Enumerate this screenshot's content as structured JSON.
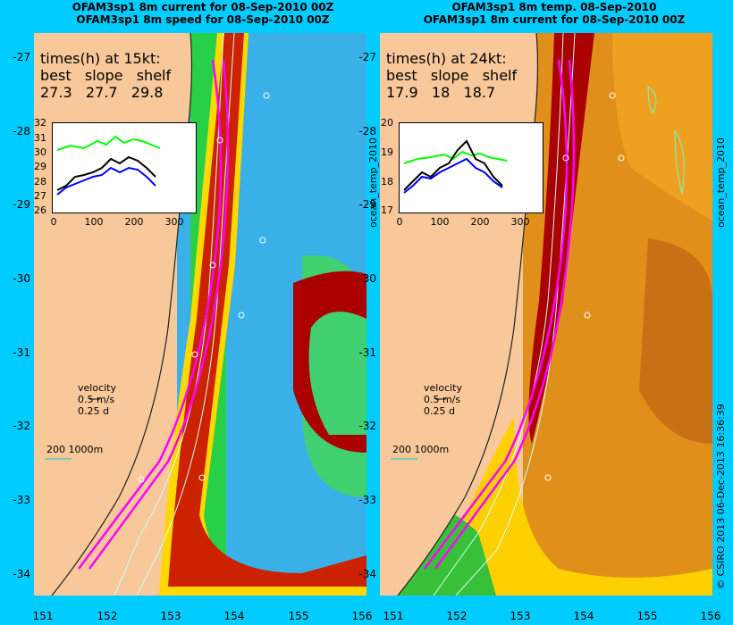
{
  "left": {
    "title1": "OFAM3sp1 8m current for 08-Sep-2010 00Z",
    "title2": "OFAM3sp1 8m speed for 08-Sep-2010 00Z",
    "times_heading": "times(h) at 15kt:",
    "col_labels": [
      "best",
      "slope",
      "shelf"
    ],
    "col_values": [
      "27.3",
      "27.7",
      "29.8"
    ],
    "inset_yticks": [
      "32",
      "31",
      "30",
      "29",
      "28",
      "27",
      "26"
    ],
    "inset_xticks": [
      "0",
      "100",
      "200",
      "300"
    ],
    "velocity": [
      "velocity",
      "0.5 m/s",
      "0.25 d"
    ],
    "scale": "200  1000m"
  },
  "right": {
    "title1": "OFAM3sp1 8m temp. 08-Sep-2010",
    "title2": "OFAM3sp1 8m current for 08-Sep-2010 00Z",
    "times_heading": "times(h) at 24kt:",
    "col_labels": [
      "best",
      "slope",
      "shelf"
    ],
    "col_values": [
      "17.9",
      "18",
      "18.7"
    ],
    "inset_yticks": [
      "20",
      "19",
      "18",
      "17"
    ],
    "inset_xticks": [
      "0",
      "100",
      "200",
      "300"
    ],
    "velocity": [
      "velocity",
      "0.5 m/s",
      "0.25 d"
    ],
    "scale": "200  1000m"
  },
  "lat_ticks": [
    "-27",
    "-28",
    "-29",
    "-30",
    "-31",
    "-32",
    "-33",
    "-34"
  ],
  "lon_ticks": [
    "151",
    "152",
    "153",
    "154",
    "155",
    "156"
  ],
  "side_label_mid": "ocean_temp_2010",
  "side_label_right": "ocean_temp_2010",
  "copyright": "© CSIRO 2013   06-Dec-2013 16:36:39",
  "colors": {
    "background": "#00ccff",
    "land": "#f8c89a",
    "route": "#ff00ff",
    "current": "#cc0000",
    "temp_warm": "#e08a10"
  }
}
